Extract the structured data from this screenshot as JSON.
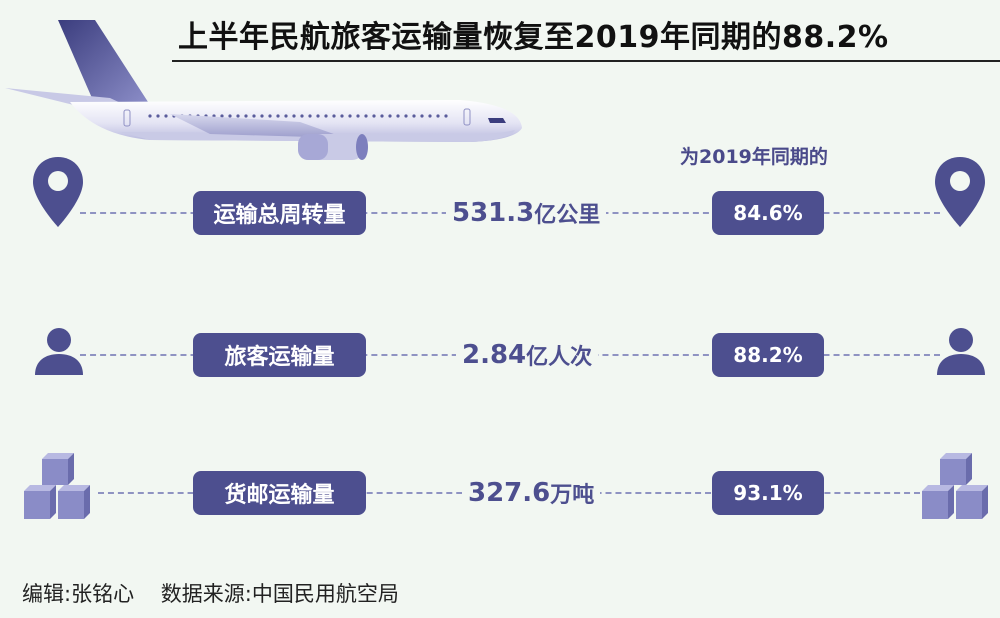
{
  "title": "上半年民航旅客运输量恢复至2019年同期的88.2%",
  "comparison_header": "为2019年同期的",
  "rows": [
    {
      "label": "运输总周转量",
      "value": "531.3",
      "unit": "亿公里",
      "percent": "84.6%",
      "icon": "location-pin-icon"
    },
    {
      "label": "旅客运输量",
      "value": "2.84",
      "unit": "亿人次",
      "percent": "88.2%",
      "icon": "person-icon"
    },
    {
      "label": "货邮运输量",
      "value": "327.6",
      "unit": "万吨",
      "percent": "93.1%",
      "icon": "cargo-boxes-icon"
    }
  ],
  "footer": {
    "editor": "编辑:张铭心",
    "source": "数据来源:中国民用航空局"
  },
  "colors": {
    "accent": "#4d4f8f",
    "background": "#f2f7f2",
    "dash": "#8f93c2",
    "box_light": "#8a8cc7"
  }
}
